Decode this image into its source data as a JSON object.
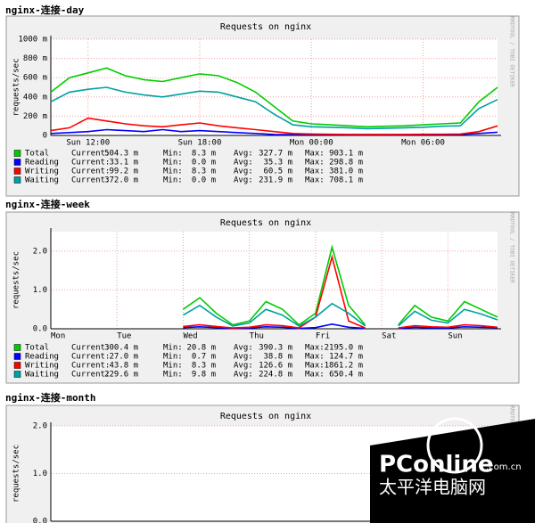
{
  "chart_data": [
    {
      "type": "line",
      "header": "nginx-连接-day",
      "title": "Requests on nginx",
      "ylabel": "requests/sec",
      "watermark": "RRDTOOL / TOBI OETIKER",
      "ylim": [
        0,
        1000
      ],
      "yticks": [
        0,
        {
          "value": 200,
          "label": "200 m"
        },
        {
          "value": 400,
          "label": "400 m"
        },
        {
          "value": 600,
          "label": "600 m"
        },
        {
          "value": 800,
          "label": "800 m"
        },
        {
          "value": 1000,
          "label": "1000 m"
        }
      ],
      "categories": [
        null,
        null,
        "Sun 12:00",
        null,
        null,
        null,
        null,
        null,
        "Sun 18:00",
        null,
        null,
        null,
        null,
        null,
        "Mon 00:00",
        null,
        null,
        null,
        null,
        null,
        "Mon 06:00",
        null,
        null,
        null,
        null
      ],
      "grid": true,
      "stat_labels": [
        "Current:",
        "Min:",
        "Avg:",
        "Max:"
      ],
      "series": [
        {
          "name": "Total",
          "color": "#00cc00",
          "values": [
            450,
            600,
            650,
            700,
            620,
            580,
            560,
            600,
            640,
            620,
            550,
            450,
            300,
            150,
            120,
            110,
            100,
            90,
            95,
            100,
            110,
            120,
            130,
            350,
            500
          ],
          "stats": [
            "504.3 m",
            "8.3 m",
            "327.7 m",
            "903.1 m"
          ]
        },
        {
          "name": "Reading",
          "color": "#0000ff",
          "values": [
            20,
            30,
            40,
            60,
            50,
            40,
            60,
            40,
            50,
            40,
            30,
            20,
            10,
            8,
            8,
            8,
            8,
            8,
            8,
            8,
            8,
            8,
            10,
            20,
            33
          ],
          "stats": [
            "33.1 m",
            "0.0 m",
            "35.3 m",
            "298.8 m"
          ]
        },
        {
          "name": "Writing",
          "color": "#ff0000",
          "values": [
            50,
            80,
            180,
            150,
            120,
            100,
            90,
            110,
            130,
            100,
            80,
            60,
            40,
            20,
            15,
            12,
            10,
            10,
            10,
            10,
            12,
            12,
            15,
            40,
            99
          ],
          "stats": [
            "99.2 m",
            "8.3 m",
            "60.5 m",
            "381.0 m"
          ]
        },
        {
          "name": "Waiting",
          "color": "#00a0a0",
          "values": [
            350,
            450,
            480,
            500,
            450,
            420,
            400,
            430,
            460,
            450,
            400,
            350,
            220,
            110,
            90,
            85,
            80,
            70,
            75,
            80,
            85,
            95,
            100,
            280,
            372
          ],
          "stats": [
            "372.0 m",
            "0.0 m",
            "231.9 m",
            "708.1 m"
          ]
        }
      ]
    },
    {
      "type": "line",
      "header": "nginx-连接-week",
      "title": "Requests on nginx",
      "ylabel": "requests/sec",
      "watermark": "RRDTOOL / TOBI OETIKER",
      "ylim": [
        0,
        2.5
      ],
      "yticks": [
        {
          "value": 0,
          "label": "0.0"
        },
        {
          "value": 1,
          "label": "1.0"
        },
        {
          "value": 2,
          "label": "2.0"
        }
      ],
      "categories": [
        "Mon",
        null,
        null,
        null,
        "Tue",
        null,
        null,
        null,
        "Wed",
        null,
        null,
        null,
        "Thu",
        null,
        null,
        null,
        "Fri",
        null,
        null,
        null,
        "Sat",
        null,
        null,
        null,
        "Sun",
        null,
        null,
        null
      ],
      "grid": true,
      "stat_labels": [
        "Current:",
        "Min:",
        "Avg:",
        "Max:"
      ],
      "series": [
        {
          "name": "Total",
          "color": "#00cc00",
          "values": [
            null,
            null,
            null,
            null,
            null,
            null,
            null,
            null,
            0.5,
            0.8,
            0.4,
            0.1,
            0.2,
            0.7,
            0.5,
            0.1,
            0.4,
            2.1,
            0.6,
            0.1,
            null,
            0.1,
            0.6,
            0.3,
            0.2,
            0.7,
            0.5,
            0.3
          ],
          "stats": [
            "300.4 m",
            "20.8 m",
            "390.3 m",
            "2195.0 m"
          ]
        },
        {
          "name": "Reading",
          "color": "#0000ff",
          "values": [
            null,
            null,
            null,
            null,
            null,
            null,
            null,
            null,
            0.03,
            0.05,
            0.03,
            0.01,
            0.02,
            0.05,
            0.04,
            0.01,
            0.03,
            0.12,
            0.04,
            0.01,
            null,
            0.01,
            0.04,
            0.02,
            0.02,
            0.05,
            0.04,
            0.03
          ],
          "stats": [
            "27.0 m",
            "0.7 m",
            "38.8 m",
            "124.7 m"
          ]
        },
        {
          "name": "Writing",
          "color": "#ff0000",
          "values": [
            null,
            null,
            null,
            null,
            null,
            null,
            null,
            null,
            0.06,
            0.1,
            0.06,
            0.02,
            0.04,
            0.1,
            0.08,
            0.02,
            0.3,
            1.85,
            0.2,
            0.02,
            null,
            0.02,
            0.08,
            0.05,
            0.04,
            0.1,
            0.08,
            0.04
          ],
          "stats": [
            "43.8 m",
            "8.3 m",
            "126.6 m",
            "1861.2 m"
          ]
        },
        {
          "name": "Waiting",
          "color": "#00a0a0",
          "values": [
            null,
            null,
            null,
            null,
            null,
            null,
            null,
            null,
            0.35,
            0.6,
            0.3,
            0.07,
            0.15,
            0.5,
            0.35,
            0.07,
            0.3,
            0.65,
            0.4,
            0.07,
            null,
            0.07,
            0.45,
            0.22,
            0.15,
            0.5,
            0.38,
            0.23
          ],
          "stats": [
            "229.6 m",
            "9.8 m",
            "224.8 m",
            "650.4 m"
          ]
        }
      ]
    },
    {
      "type": "line",
      "header": "nginx-连接-month",
      "title": "Requests on nginx",
      "ylabel": "requests/sec",
      "watermark": "RRDTOOL / TOBI OETIKER",
      "ylim": [
        0,
        2
      ],
      "yticks": [
        {
          "value": 0,
          "label": "0.0"
        },
        {
          "value": 1,
          "label": "1.0"
        },
        {
          "value": 2,
          "label": "2.0"
        }
      ],
      "grid": true
    }
  ],
  "overlay": {
    "brand": "PConline",
    "domain": ".com.cn",
    "name": "太平洋电脑网"
  }
}
